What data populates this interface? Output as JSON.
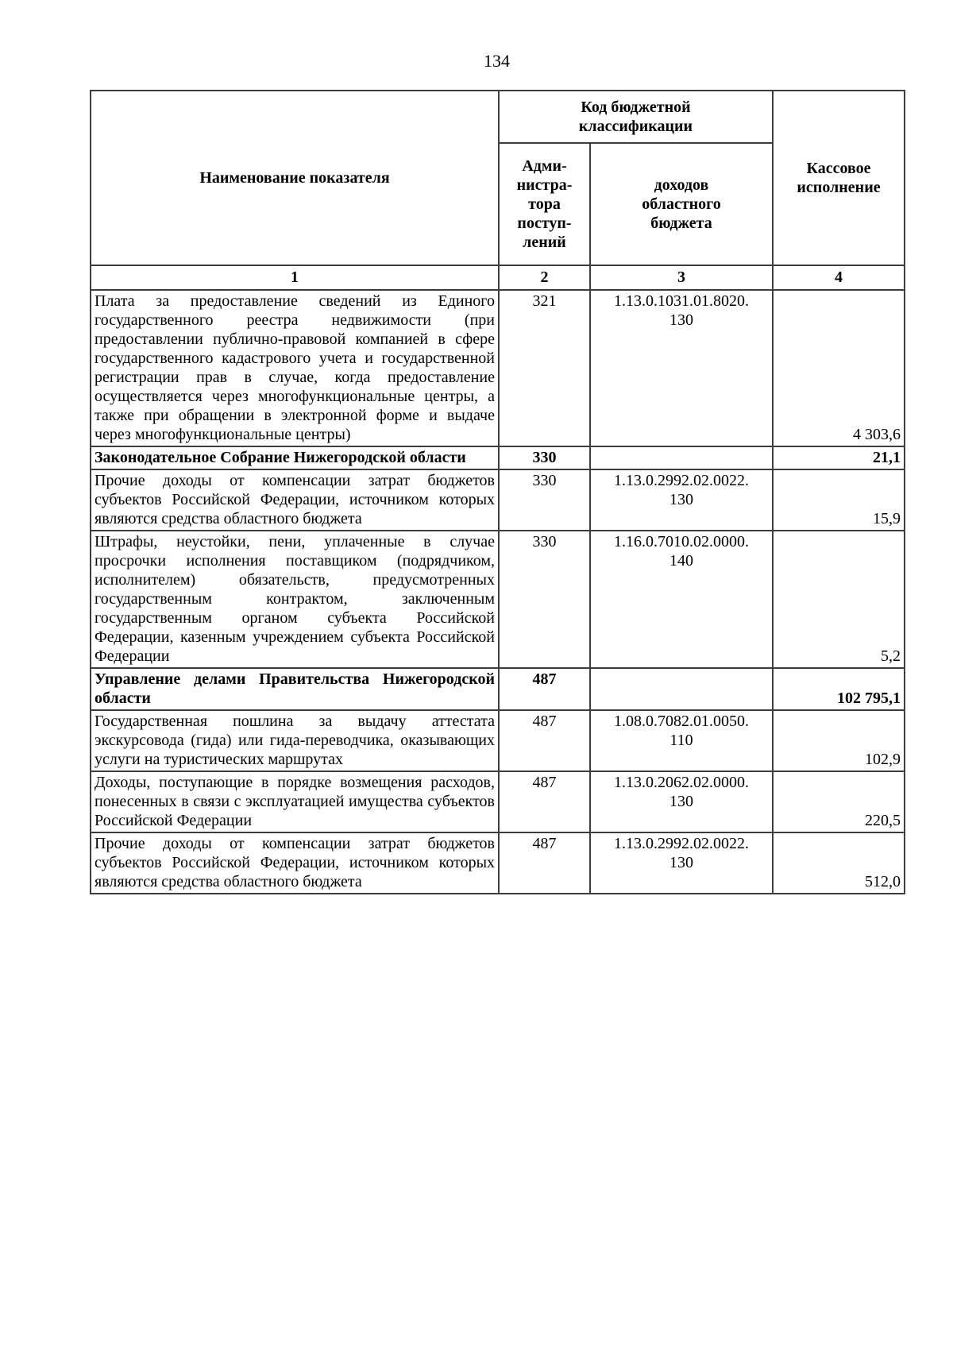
{
  "page": {
    "number": "134"
  },
  "table": {
    "header": {
      "indicator": "Наименование показателя",
      "code_group": "Код бюджетной\nклассификации",
      "admin": "Адми-\nнистра-\nтора\nпоступ-\nлений",
      "revenue_code": "доходов\nобластного\nбюджета",
      "cash": "Кассовое\nисполнение",
      "num1": "1",
      "num2": "2",
      "num3": "3",
      "num4": "4"
    },
    "rows": [
      {
        "name": "Плата за предоставление сведений из Единого государственного реестра недвижимости (при предоставлении публично-правовой компанией в сфере государственного кадастрового учета и государственной регистрации прав в случае, когда предоставление осуществляется через многофункциональные центры, а также при обращении в электронной форме и выдаче через многофункциональные центры)",
        "admin": "321",
        "code": "1.13.0.1031.01.8020.\n130",
        "value": "4 303,6"
      },
      {
        "name": "Законодательное Собрание Нижегородской области",
        "admin": "330",
        "code": "",
        "value": "21,1"
      },
      {
        "name": "Прочие доходы от компенсации затрат бюджетов субъектов Российской Федерации, источником которых являются средства областного бюджета",
        "admin": "330",
        "code": "1.13.0.2992.02.0022.\n130",
        "value": "15,9"
      },
      {
        "name": "Штрафы, неустойки, пени, уплаченные в случае просрочки исполнения поставщиком (подрядчиком, исполнителем) обязательств, предусмотренных государственным контрактом, заключенным государственным органом субъекта Российской Федерации, казенным учреждением субъекта Российской Федерации",
        "admin": "330",
        "code": "1.16.0.7010.02.0000.\n140",
        "value": "5,2"
      },
      {
        "name": "Управление делами Правительства Нижегородской области",
        "admin": "487",
        "code": "",
        "value": "102 795,1"
      },
      {
        "name": "Государственная пошлина за выдачу аттестата экскурсовода (гида) или гида-переводчика, оказывающих услуги на туристических маршрутах",
        "admin": "487",
        "code": "1.08.0.7082.01.0050.\n110",
        "value": "102,9"
      },
      {
        "name": "Доходы, поступающие в порядке возмещения расходов, понесенных в связи с эксплуатацией имущества субъектов Российской Федерации",
        "admin": "487",
        "code": "1.13.0.2062.02.0000.\n130",
        "value": "220,5"
      },
      {
        "name": "Прочие доходы от компенсации затрат бюджетов субъектов Российской Федерации, источником которых являются средства областного бюджета",
        "admin": "487",
        "code": "1.13.0.2992.02.0022.\n130",
        "value": "512,0"
      }
    ]
  }
}
